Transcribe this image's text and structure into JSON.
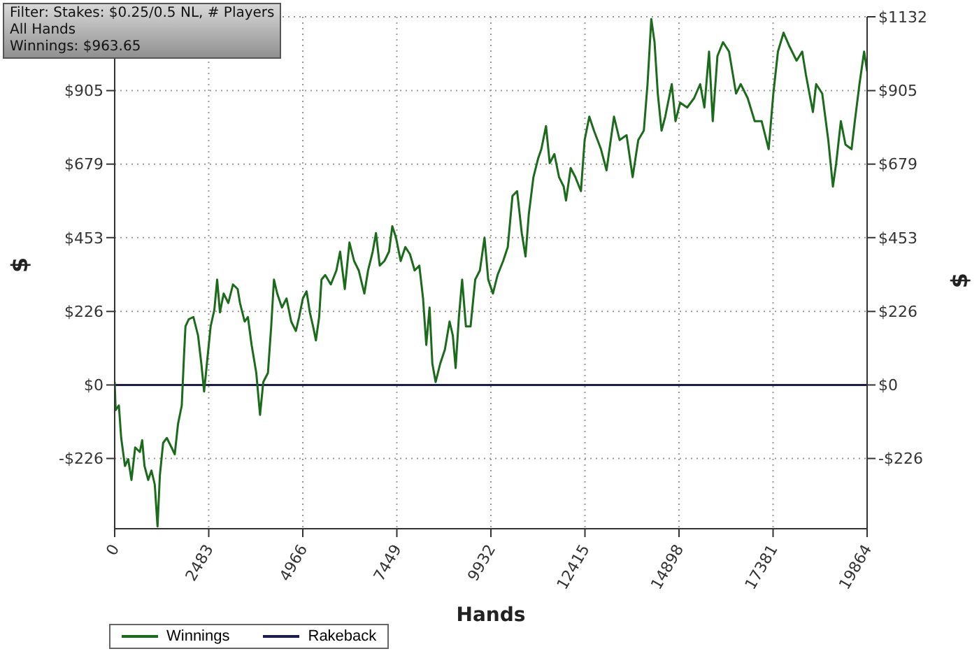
{
  "chart_data": {
    "type": "line",
    "xlabel": "Hands",
    "ylabel": "$",
    "y2label": "$",
    "annotations": [
      "Filter: Stakes: $0.25/0.5 NL, # Players",
      "All Hands",
      "Winnings: $963.65"
    ],
    "xlim": [
      0,
      19864
    ],
    "xticks": [
      0,
      2483,
      4966,
      7449,
      9932,
      12415,
      14898,
      17381,
      19864
    ],
    "ylim": [
      -442,
      1132
    ],
    "yticks": [
      {
        "value": -226,
        "label": "-$226"
      },
      {
        "value": 0,
        "label": "$0"
      },
      {
        "value": 226,
        "label": "$226"
      },
      {
        "value": 453,
        "label": "$453"
      },
      {
        "value": 679,
        "label": "$679"
      },
      {
        "value": 905,
        "label": "$905"
      },
      {
        "value": 1132,
        "label": null
      }
    ],
    "y2lim": [
      -442,
      1132
    ],
    "y2ticks": [
      {
        "value": -226,
        "label": "-$226"
      },
      {
        "value": 0,
        "label": "$0"
      },
      {
        "value": 226,
        "label": "$226"
      },
      {
        "value": 453,
        "label": "$453"
      },
      {
        "value": 679,
        "label": "$679"
      },
      {
        "value": 905,
        "label": "$905"
      },
      {
        "value": 1132,
        "label": "$1132"
      }
    ],
    "grid": true,
    "legend": "bottom",
    "marker": "none",
    "line_style": "solid",
    "series": [
      {
        "name": "Winnings",
        "color": "#1a6b1a",
        "x": [
          0,
          25,
          111,
          172,
          271,
          357,
          443,
          541,
          664,
          726,
          787,
          885,
          971,
          1058,
          1131,
          1193,
          1279,
          1377,
          1500,
          1586,
          1672,
          1771,
          1832,
          1869,
          1955,
          2078,
          2201,
          2287,
          2361,
          2447,
          2533,
          2631,
          2705,
          2779,
          2877,
          3000,
          3123,
          3246,
          3308,
          3431,
          3517,
          3615,
          3738,
          3837,
          3923,
          4046,
          4132,
          4205,
          4291,
          4415,
          4537,
          4660,
          4784,
          4869,
          4968,
          5066,
          5152,
          5238,
          5312,
          5398,
          5460,
          5558,
          5706,
          5853,
          5951,
          6075,
          6198,
          6321,
          6444,
          6591,
          6689,
          6812,
          6898,
          6997,
          7120,
          7243,
          7329,
          7427,
          7550,
          7673,
          7796,
          7919,
          8042,
          8141,
          8226,
          8313,
          8386,
          8473,
          8595,
          8718,
          8841,
          8927,
          9001,
          9087,
          9173,
          9272,
          9395,
          9518,
          9641,
          9764,
          9862,
          9985,
          10108,
          10255,
          10378,
          10501,
          10624,
          10747,
          10846,
          10932,
          11055,
          11178,
          11264,
          11387,
          11485,
          11608,
          11731,
          11854,
          11915,
          12038,
          12162,
          12309,
          12407,
          12530,
          12653,
          12838,
          12985,
          13182,
          13330,
          13514,
          13674,
          13822,
          13969,
          14067,
          14166,
          14252,
          14338,
          14437,
          14535,
          14707,
          14805,
          14928,
          15113,
          15297,
          15457,
          15568,
          15691,
          15789,
          15912,
          16060,
          16219,
          16404,
          16527,
          16711,
          16896,
          17080,
          17265,
          17388,
          17510,
          17658,
          17818,
          18002,
          18150,
          18248,
          18433,
          18519,
          18679,
          18839,
          18961,
          19048,
          19171,
          19293,
          19453,
          19540,
          19662,
          19785,
          19864
        ],
        "values": [
          9,
          -77,
          -63,
          -163,
          -249,
          -228,
          -292,
          -192,
          -206,
          -170,
          -249,
          -292,
          -263,
          -306,
          -435,
          -278,
          -178,
          -163,
          -192,
          -213,
          -120,
          -63,
          95,
          180,
          202,
          209,
          152,
          66,
          -20,
          80,
          180,
          231,
          324,
          223,
          281,
          252,
          309,
          295,
          252,
          195,
          209,
          123,
          37,
          -92,
          9,
          37,
          180,
          324,
          281,
          238,
          266,
          195,
          166,
          209,
          266,
          288,
          223,
          180,
          137,
          209,
          324,
          338,
          309,
          352,
          410,
          295,
          438,
          381,
          352,
          281,
          352,
          410,
          467,
          367,
          381,
          410,
          488,
          453,
          381,
          424,
          402,
          352,
          367,
          266,
          123,
          238,
          66,
          9,
          66,
          109,
          195,
          152,
          52,
          209,
          324,
          180,
          180,
          324,
          352,
          453,
          324,
          281,
          338,
          381,
          424,
          581,
          596,
          467,
          395,
          524,
          639,
          696,
          725,
          796,
          682,
          710,
          639,
          610,
          567,
          667,
          639,
          596,
          753,
          825,
          782,
          725,
          660,
          825,
          753,
          768,
          639,
          753,
          782,
          925,
          1125,
          1054,
          896,
          782,
          825,
          925,
          811,
          868,
          853,
          882,
          925,
          853,
          1025,
          811,
          1011,
          1054,
          1025,
          896,
          925,
          882,
          811,
          811,
          725,
          896,
          1025,
          1083,
          1040,
          997,
          1025,
          954,
          839,
          925,
          896,
          753,
          610,
          682,
          811,
          739,
          725,
          811,
          925,
          1025,
          964
        ]
      },
      {
        "name": "Rakeback",
        "color": "#1c1c50",
        "x": [
          0,
          19864
        ],
        "values": [
          0,
          0
        ]
      }
    ]
  }
}
